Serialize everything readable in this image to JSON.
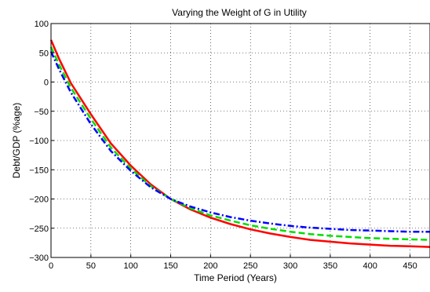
{
  "chart_data": {
    "type": "line",
    "title": "Varying the Weight of G in Utility",
    "xlabel": "Time Period (Years)",
    "ylabel": "Debt/GDP (%age)",
    "xlim": [
      0,
      475
    ],
    "ylim": [
      -300,
      100
    ],
    "xticks": [
      0,
      50,
      100,
      150,
      200,
      250,
      300,
      350,
      400,
      450
    ],
    "yticks": [
      100,
      50,
      0,
      -50,
      -100,
      -150,
      -200,
      -250,
      -300
    ],
    "grid": true,
    "series": [
      {
        "color": "#ff0000",
        "style": "solid",
        "x": [
          0,
          10,
          25,
          50,
          75,
          100,
          125,
          150,
          175,
          200,
          225,
          250,
          275,
          300,
          325,
          350,
          375,
          400,
          425,
          450,
          475
        ],
        "y": [
          72,
          40,
          -2,
          -55,
          -105,
          -143,
          -175,
          -200,
          -218,
          -232,
          -243,
          -252,
          -259,
          -265,
          -270,
          -273,
          -276,
          -278,
          -280,
          -281,
          -282
        ]
      },
      {
        "color": "#00dd00",
        "style": "dashed",
        "x": [
          0,
          10,
          25,
          50,
          75,
          100,
          125,
          150,
          175,
          200,
          225,
          250,
          275,
          300,
          325,
          350,
          375,
          400,
          425,
          450,
          475
        ],
        "y": [
          60,
          30,
          -10,
          -63,
          -112,
          -148,
          -178,
          -200,
          -216,
          -228,
          -237,
          -245,
          -251,
          -256,
          -260,
          -263,
          -265,
          -267,
          -268,
          -269,
          -270
        ]
      },
      {
        "color": "#0000ff",
        "style": "dashdot",
        "x": [
          0,
          10,
          25,
          50,
          75,
          100,
          125,
          150,
          175,
          200,
          225,
          250,
          275,
          300,
          325,
          350,
          375,
          400,
          425,
          450,
          475
        ],
        "y": [
          52,
          22,
          -18,
          -72,
          -118,
          -152,
          -180,
          -200,
          -213,
          -223,
          -231,
          -237,
          -242,
          -246,
          -249,
          -251,
          -253,
          -254,
          -255,
          -256,
          -256
        ]
      }
    ]
  }
}
